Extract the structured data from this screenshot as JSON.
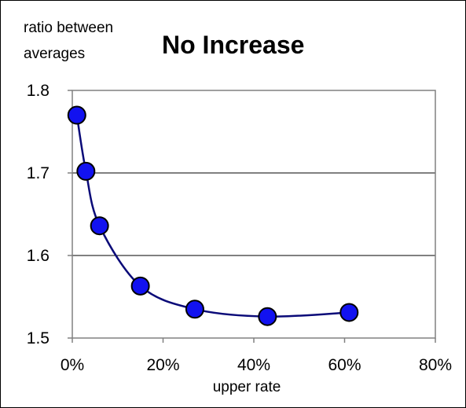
{
  "chart_data": {
    "type": "scatter",
    "title": "No Increase",
    "ylabel_lines": [
      "ratio between",
      "averages"
    ],
    "xlabel": "upper rate",
    "xlim": [
      0,
      0.8
    ],
    "ylim": [
      1.5,
      1.8
    ],
    "x_ticks": [
      0,
      0.2,
      0.4,
      0.6,
      0.8
    ],
    "x_tick_labels": [
      "0%",
      "20%",
      "40%",
      "60%",
      "80%"
    ],
    "y_ticks": [
      1.5,
      1.6,
      1.7,
      1.8
    ],
    "y_tick_labels": [
      "1.5",
      "1.6",
      "1.7",
      "1.8"
    ],
    "grid": "horizontal",
    "smooth_line": true,
    "colors": {
      "marker_fill": "#1212f0",
      "marker_edge": "#000000",
      "line": "#0a0a78",
      "grid": "#000000",
      "plot_border": "#808080"
    },
    "series": [
      {
        "x": [
          0.01,
          0.03,
          0.06,
          0.15,
          0.27,
          0.43,
          0.61
        ],
        "y": [
          1.77,
          1.702,
          1.636,
          1.563,
          1.535,
          1.526,
          1.531
        ]
      }
    ]
  }
}
